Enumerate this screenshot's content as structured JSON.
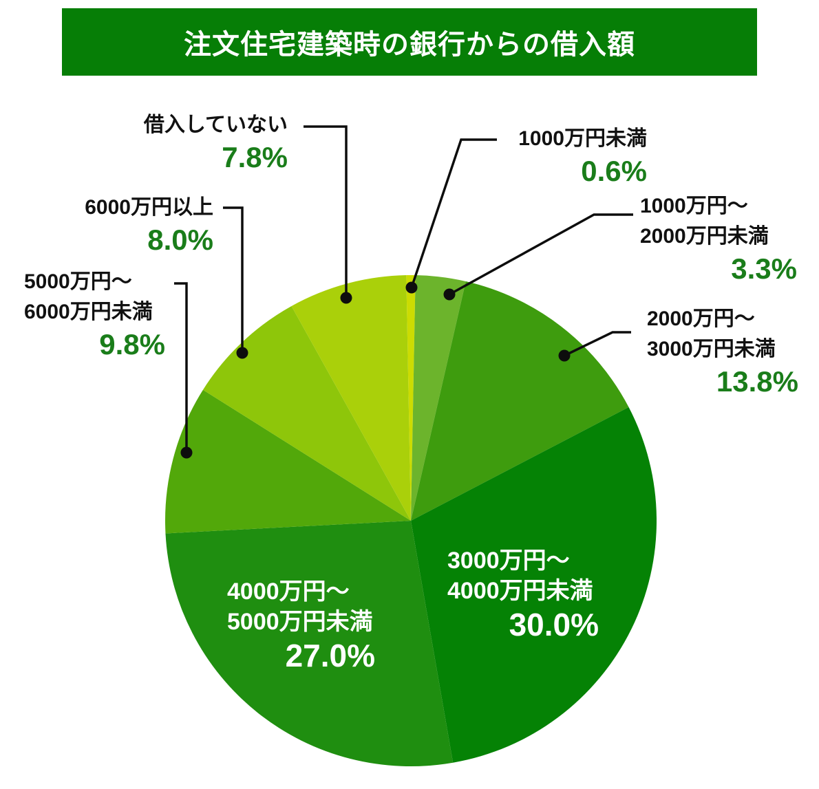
{
  "title": "注文住宅建築時の銀行からの借入額",
  "colors": {
    "banner_bg": "#067e06",
    "banner_text": "#ffffff",
    "percent_text": "#1a7d1a",
    "label_text": "#111111",
    "leader_line": "#0d0d0d",
    "inside_label_text": "#ffffff"
  },
  "chart_data": {
    "type": "pie",
    "title": "注文住宅建築時の銀行からの借入額",
    "unit": "%",
    "start_angle": "first slice centered at 12 o'clock, clockwise",
    "legend_position": "none (leader-line labels)",
    "slices": [
      {
        "label": "1000万円未満",
        "label_lines": [
          "1000万円未満"
        ],
        "value": 0.6,
        "pct_label": "0.6%",
        "color": "#ccdc02",
        "label_placement": "outside"
      },
      {
        "label": "1000万円～2000万円未満",
        "label_lines": [
          "1000万円～",
          "2000万円未満"
        ],
        "value": 3.3,
        "pct_label": "3.3%",
        "color": "#6cb42c",
        "label_placement": "outside"
      },
      {
        "label": "2000万円～3000万円未満",
        "label_lines": [
          "2000万円～",
          "3000万円未満"
        ],
        "value": 13.8,
        "pct_label": "13.8%",
        "color": "#3e9c0e",
        "label_placement": "outside"
      },
      {
        "label": "3000万円～4000万円未満",
        "label_lines": [
          "3000万円～",
          "4000万円未満"
        ],
        "value": 30.0,
        "pct_label": "30.0%",
        "color": "#058205",
        "label_placement": "inside"
      },
      {
        "label": "4000万円～5000万円未満",
        "label_lines": [
          "4000万円～",
          "5000万円未満"
        ],
        "value": 27.0,
        "pct_label": "27.0%",
        "color": "#1f8e10",
        "label_placement": "inside"
      },
      {
        "label": "5000万円～6000万円未満",
        "label_lines": [
          "5000万円～",
          "6000万円未満"
        ],
        "value": 9.8,
        "pct_label": "9.8%",
        "color": "#52a80a",
        "label_placement": "outside"
      },
      {
        "label": "6000万円以上",
        "label_lines": [
          "6000万円以上"
        ],
        "value": 8.0,
        "pct_label": "8.0%",
        "color": "#8ec60a",
        "label_placement": "outside"
      },
      {
        "label": "借入していない",
        "label_lines": [
          "借入していない"
        ],
        "value": 7.8,
        "pct_label": "7.8%",
        "color": "#aad00a",
        "label_placement": "outside"
      }
    ]
  }
}
